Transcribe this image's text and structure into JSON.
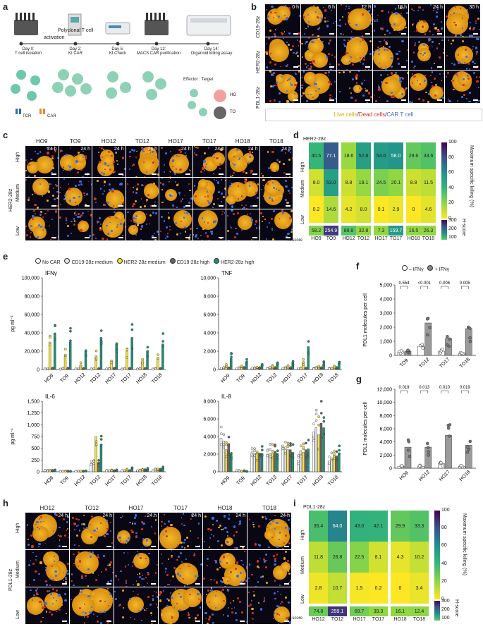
{
  "panels": {
    "a": "a",
    "b": "b",
    "c": "c",
    "d": "d",
    "e": "e",
    "f": "f",
    "g": "g",
    "h": "h",
    "i": "i"
  },
  "colors": {
    "ho": "#f3a0a0",
    "to": "#555555",
    "yellow": "#f5e03c",
    "green": "#1d8f73",
    "grey": "#8c8c8c",
    "white": "#ffffff"
  },
  "panel_a": {
    "polyclonal": "Polyclonal T cell",
    "activation": "activation",
    "steps": [
      {
        "day": "Day 0:",
        "label": "T cell isolation"
      },
      {
        "day": "Day 2:",
        "label": "KI CAR"
      },
      {
        "day": "Day 5:",
        "label": "KI Check"
      },
      {
        "day": "Day 12:",
        "label": "MACS CAR purification"
      },
      {
        "day": "Day 14:",
        "label": "Organoid killing assay"
      }
    ],
    "tcr": "TCR",
    "car": "CAR",
    "effector_target": "Effector : Target",
    "ho": "HO",
    "to": "TO"
  },
  "panel_b": {
    "rows": [
      "CD19-28z",
      "HER2-28z",
      "PDL1-28z"
    ],
    "times": [
      "0 h",
      "6 h",
      "12 h",
      "18 h",
      "24 h",
      "30 h"
    ],
    "legend_live": "Live cells",
    "legend_dead": "Dead cells",
    "legend_cart": "CAR T cell",
    "sep": "/"
  },
  "panel_c": {
    "columns": [
      "HO9",
      "TO9",
      "HO12",
      "TO12",
      "HO17",
      "TO17",
      "HO18",
      "TO18"
    ],
    "row_group": "HER2-28z",
    "rows": [
      "High",
      "Medium",
      "Low"
    ],
    "time": "24 h"
  },
  "panel_d": {
    "title": "HER2-28z",
    "rows": [
      "High",
      "Medium",
      "Low"
    ],
    "values": [
      [
        "40.5",
        "77.1",
        "18.6",
        "52.8",
        "54.6",
        "58.0",
        "29.6",
        "33.6"
      ],
      [
        "8.0",
        "53.0",
        "8.8",
        "19.1",
        "24.5",
        "20.1",
        "8.8",
        "11.5"
      ],
      [
        "0.2",
        "14.6",
        "4.2",
        "8.0",
        "0.1",
        "2.9",
        "0",
        "4.6"
      ]
    ],
    "hscore_label": "H-score",
    "hscore": [
      "58.2",
      "254.9",
      "89.8",
      "32.8",
      "7.3",
      "159.7",
      "16.5",
      "26.3"
    ],
    "columns": [
      "HO9",
      "TO9",
      "HO12",
      "TO12",
      "HO17",
      "TO17",
      "HO18",
      "TO18"
    ],
    "colorbar_ticks": [
      "100",
      "80",
      "60",
      "40",
      "20",
      "0"
    ],
    "colorbar_label": "Maximum specific killing (%)",
    "hbar_ticks": [
      "300",
      "200",
      "100"
    ],
    "hbar_label": "H-score"
  },
  "panel_e": {
    "legend": [
      "No CAR",
      "CD19-28z medium",
      "HER2-28z medium",
      "CD19-28z high",
      "HER2-28z high"
    ],
    "ylabel": "pg ml⁻¹",
    "categories": [
      "HO9",
      "TO9",
      "HO12",
      "TO12",
      "HO17",
      "TO17",
      "HO18",
      "TO18"
    ],
    "subplots": [
      {
        "title": "IFNγ",
        "ticks": [
          "100,000",
          "80,000",
          "60,000",
          "40,000",
          "20,000",
          "0"
        ]
      },
      {
        "title": "TNF",
        "ticks": [
          "10,000",
          "8,000",
          "6,000",
          "4,000",
          "2,000",
          "0"
        ]
      },
      {
        "title": "IL-6",
        "ticks": [
          "1,500",
          "1,250",
          "1,000",
          "750",
          "500",
          "250",
          "0"
        ]
      },
      {
        "title": "IL-8",
        "ticks": [
          "8,000",
          "6,000",
          "4,000",
          "2,000",
          "0"
        ]
      }
    ]
  },
  "panel_f": {
    "legend_minus": "– IFNγ",
    "legend_plus": "+ IFNγ",
    "ylabel": "PDL1 molecules per cell",
    "ticks": [
      "5,000",
      "4,000",
      "3,000",
      "2,000",
      "1,000",
      "0"
    ],
    "categories": [
      "TO9",
      "TO12",
      "TO17",
      "TO18"
    ],
    "pvalues": [
      "0.554",
      "<0.001",
      "0.006",
      "0.005"
    ]
  },
  "panel_g": {
    "ylabel": "PDL1 molecules per cell",
    "ticks": [
      "12,000",
      "10,000",
      "8,000",
      "6,000",
      "4,000",
      "2,000",
      "0"
    ],
    "categories": [
      "HO9",
      "HO12",
      "HO17",
      "HO18"
    ],
    "pvalues": [
      "0.019",
      "0.013",
      "0.010",
      "0.019"
    ]
  },
  "panel_h": {
    "columns": [
      "HO12",
      "TO12",
      "HO17",
      "TO17",
      "HO18",
      "TO18"
    ],
    "row_group": "PDL1-28z",
    "rows": [
      "High",
      "Medium",
      "Low"
    ],
    "time": "24 h"
  },
  "panel_i": {
    "title": "PDL1-28z",
    "rows": [
      "High",
      "Medium",
      "Low"
    ],
    "values": [
      [
        "35.4",
        "64.0",
        "43.0",
        "42.1",
        "29.9",
        "33.3"
      ],
      [
        "11.8",
        "28.8",
        "22.5",
        "8.1",
        "4.3",
        "10.2"
      ],
      [
        "2.8",
        "10.7",
        "1.5",
        "0.2",
        "0",
        "3.4"
      ]
    ],
    "hscore_label": "H-score",
    "hscore": [
      "74.8",
      "259.1",
      "69.7",
      "39.3",
      "16.1",
      "12.4"
    ],
    "columns": [
      "HO12",
      "TO12",
      "HO17",
      "TO17",
      "HO18",
      "TO18"
    ],
    "colorbar_ticks": [
      "100",
      "80",
      "60",
      "40",
      "20",
      "0"
    ],
    "colorbar_label": "Maximum specific killing (%)",
    "hbar_ticks": [
      "300",
      "200",
      "100"
    ],
    "hbar_label": "H-score"
  },
  "chart_data": [
    {
      "type": "heatmap",
      "title": "HER2-28z",
      "x": [
        "HO9",
        "TO9",
        "HO12",
        "TO12",
        "HO17",
        "TO17",
        "HO18",
        "TO18"
      ],
      "y": [
        "High",
        "Medium",
        "Low"
      ],
      "values": [
        [
          40.5,
          77.1,
          18.6,
          52.8,
          54.6,
          58.0,
          29.6,
          33.6
        ],
        [
          8.0,
          53.0,
          8.8,
          19.1,
          24.5,
          20.1,
          8.8,
          11.5
        ],
        [
          0.2,
          14.6,
          4.2,
          8.0,
          0.1,
          2.9,
          0,
          4.6
        ]
      ],
      "hscore": [
        58.2,
        254.9,
        89.8,
        32.8,
        7.3,
        159.7,
        16.5,
        26.3
      ],
      "colorbar_range": [
        0,
        100
      ]
    },
    {
      "type": "bar",
      "title": "IFNγ",
      "categories": [
        "HO9",
        "TO9",
        "HO12",
        "TO12",
        "HO17",
        "TO17",
        "HO18",
        "TO18"
      ],
      "ylim": [
        0,
        100000
      ],
      "series": [
        {
          "name": "No CAR",
          "values": [
            500,
            500,
            500,
            500,
            500,
            500,
            500,
            500
          ]
        },
        {
          "name": "CD19-28z medium",
          "values": [
            1000,
            1000,
            1000,
            1000,
            1000,
            1000,
            1000,
            1000
          ]
        },
        {
          "name": "HER2-28z medium",
          "values": [
            30000,
            15000,
            5000,
            15000,
            10000,
            20000,
            8000,
            12000
          ]
        },
        {
          "name": "CD19-28z high",
          "values": [
            1000,
            1000,
            1000,
            1000,
            1000,
            1000,
            1000,
            1000
          ]
        },
        {
          "name": "HER2-28z high",
          "values": [
            40000,
            30000,
            20000,
            35000,
            28000,
            35000,
            20000,
            28000
          ]
        }
      ]
    },
    {
      "type": "bar",
      "title": "TNF",
      "categories": [
        "HO9",
        "TO9",
        "HO12",
        "TO12",
        "HO17",
        "TO17",
        "HO18",
        "TO18"
      ],
      "ylim": [
        0,
        10000
      ],
      "series": [
        {
          "name": "No CAR",
          "values": [
            100,
            100,
            100,
            100,
            100,
            100,
            100,
            100
          ]
        },
        {
          "name": "CD19-28z medium",
          "values": [
            150,
            150,
            150,
            150,
            150,
            150,
            150,
            150
          ]
        },
        {
          "name": "HER2-28z medium",
          "values": [
            400,
            300,
            200,
            300,
            300,
            800,
            300,
            300
          ]
        },
        {
          "name": "CD19-28z high",
          "values": [
            150,
            150,
            150,
            150,
            150,
            150,
            150,
            150
          ]
        },
        {
          "name": "HER2-28z high",
          "values": [
            1200,
            800,
            500,
            700,
            800,
            2500,
            600,
            700
          ]
        }
      ]
    },
    {
      "type": "bar",
      "title": "IL-6",
      "categories": [
        "HO9",
        "TO9",
        "HO12",
        "TO12",
        "HO17",
        "TO17",
        "HO18",
        "TO18"
      ],
      "ylim": [
        0,
        1500
      ],
      "series": [
        {
          "name": "No CAR",
          "values": [
            20,
            10,
            10,
            160,
            20,
            20,
            20,
            30
          ]
        },
        {
          "name": "CD19-28z medium",
          "values": [
            20,
            10,
            10,
            180,
            20,
            20,
            30,
            40
          ]
        },
        {
          "name": "HER2-28z medium",
          "values": [
            25,
            10,
            10,
            750,
            30,
            40,
            40,
            50
          ]
        },
        {
          "name": "CD19-28z high",
          "values": [
            20,
            10,
            10,
            200,
            20,
            20,
            30,
            40
          ]
        },
        {
          "name": "HER2-28z high",
          "values": [
            30,
            10,
            15,
            580,
            40,
            60,
            50,
            70
          ]
        }
      ]
    },
    {
      "type": "bar",
      "title": "IL-8",
      "categories": [
        "HO9",
        "TO9",
        "HO12",
        "TO12",
        "HO17",
        "TO17",
        "HO18",
        "TO18"
      ],
      "ylim": [
        0,
        8000
      ],
      "series": [
        {
          "name": "No CAR",
          "values": [
            3800,
            100,
            2100,
            2000,
            3000,
            1300,
            4500,
            1200
          ]
        },
        {
          "name": "CD19-28z medium",
          "values": [
            3500,
            100,
            2100,
            2100,
            2500,
            2400,
            5000,
            1500
          ]
        },
        {
          "name": "HER2-28z medium",
          "values": [
            2500,
            50,
            2100,
            2100,
            2500,
            2200,
            4200,
            1800
          ]
        },
        {
          "name": "CD19-28z high",
          "values": [
            3200,
            100,
            2100,
            2100,
            2500,
            2500,
            5500,
            1800
          ]
        },
        {
          "name": "HER2-28z high",
          "values": [
            2000,
            50,
            2100,
            2100,
            2200,
            2600,
            5000,
            2100
          ]
        }
      ]
    },
    {
      "type": "bar",
      "title": "",
      "categories": [
        "TO9",
        "TO12",
        "TO17",
        "TO18"
      ],
      "ylabel": "PDL1 molecules per cell",
      "ylim": [
        0,
        5000
      ],
      "series": [
        {
          "name": "– IFNγ",
          "values": [
            250,
            650,
            300,
            150
          ]
        },
        {
          "name": "+ IFNγ",
          "values": [
            300,
            2300,
            1200,
            1900
          ]
        }
      ]
    },
    {
      "type": "bar",
      "title": "",
      "categories": [
        "HO9",
        "HO12",
        "HO17",
        "HO18"
      ],
      "ylabel": "PDL1 molecules per cell",
      "ylim": [
        0,
        12000
      ],
      "series": [
        {
          "name": "– IFNγ",
          "values": [
            300,
            300,
            700,
            300
          ]
        },
        {
          "name": "+ IFNγ",
          "values": [
            3200,
            3200,
            5000,
            3500
          ]
        }
      ]
    },
    {
      "type": "heatmap",
      "title": "PDL1-28z",
      "x": [
        "HO12",
        "TO12",
        "HO17",
        "TO17",
        "HO18",
        "TO18"
      ],
      "y": [
        "High",
        "Medium",
        "Low"
      ],
      "values": [
        [
          35.4,
          64.0,
          43.0,
          42.1,
          29.9,
          33.3
        ],
        [
          11.8,
          28.8,
          22.5,
          8.1,
          4.3,
          10.2
        ],
        [
          2.8,
          10.7,
          1.5,
          0.2,
          0,
          3.4
        ]
      ],
      "hscore": [
        74.8,
        259.1,
        69.7,
        39.3,
        16.1,
        12.4
      ],
      "colorbar_range": [
        0,
        100
      ]
    }
  ]
}
